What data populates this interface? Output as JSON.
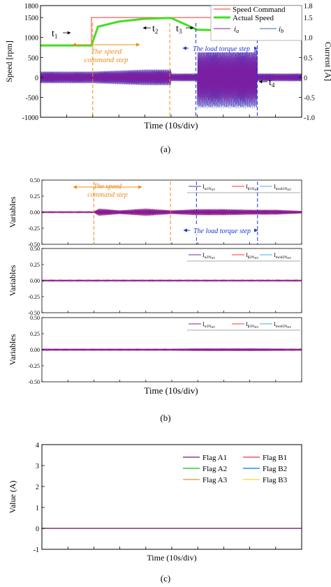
{
  "colors": {
    "speed_command": "#ff5a5a",
    "actual_speed": "#44dd22",
    "current_a": "#7b1fa2",
    "current_b": "#2c66d9",
    "orange_marker": "#f08a1a",
    "blue_marker": "#1a35d6",
    "var_a": "#7b1fa2",
    "var_b": "#ff3030",
    "var_mod": "#45b0e0",
    "flag_a1": "#8a3aa8",
    "flag_b1": "#ff5050",
    "flag_a2": "#33cc33",
    "flag_b2": "#2a8fe0",
    "flag_a3": "#f0a050",
    "flag_b3": "#f5e04a"
  },
  "captions": {
    "a": "(a)",
    "b": "(b)",
    "c": "(c)"
  },
  "chart_data": [
    {
      "id": "a",
      "type": "line",
      "xlabel": "Time (10s/div)",
      "ylabel": "Speed [rpm]",
      "y2label": "Current [A]",
      "ylim": [
        -1000,
        1800
      ],
      "y2lim": [
        -1.0,
        1.8
      ],
      "yticks": [
        "1800",
        "1500",
        "1000",
        "500",
        "0",
        "-500",
        "-1000"
      ],
      "y2ticks": [
        "1.8",
        "1.5",
        "1.0",
        "0.5",
        "0",
        "-0.5",
        "-1.0"
      ],
      "legend": [
        "Speed Command",
        "Actual Speed",
        "i_a",
        "i_b"
      ],
      "legend_labels": {
        "speed_command": "Speed Command",
        "actual_speed": "Actual Speed",
        "ia": "i",
        "ia_sub": "a",
        "ib": "i",
        "ib_sub": "b"
      },
      "legend_position": "top-right",
      "series": [
        {
          "name": "Speed Command",
          "x": [
            0,
            1.95,
            1.95,
            10
          ],
          "y": [
            800,
            800,
            1500,
            1500
          ]
        },
        {
          "name": "Actual Speed",
          "x": [
            0,
            1.95,
            2.2,
            3.0,
            4.0,
            5.0,
            6.0,
            7.0,
            8.0,
            8.5,
            9.0,
            10
          ],
          "y": [
            800,
            800,
            1270,
            1400,
            1470,
            1490,
            1195,
            1180,
            1180,
            1280,
            1240,
            1230
          ]
        },
        {
          "name": "i_a",
          "envelope": {
            "x": [
              0,
              2,
              4,
              5,
              5,
              6,
              6,
              8.3,
              8.3,
              10
            ],
            "amp": [
              0.15,
              0.15,
              0.2,
              0.2,
              0.1,
              0.1,
              0.75,
              0.75,
              0.1,
              0.1
            ]
          }
        },
        {
          "name": "i_b",
          "envelope": {
            "x": [
              0,
              2,
              4,
              5,
              5,
              6,
              6,
              8.3,
              8.3,
              10
            ],
            "amp": [
              0.15,
              0.15,
              0.2,
              0.2,
              0.1,
              0.1,
              0.78,
              0.78,
              0.1,
              0.1
            ]
          }
        }
      ],
      "annotations": {
        "t1": "t",
        "t1_sub": "1",
        "t2": "t",
        "t2_sub": "2",
        "t3": "t",
        "t3_sub": "3",
        "t4": "t",
        "t4_sub": "4",
        "speed_step_line1": "The speed",
        "speed_step_line2": "command step",
        "load_step": "The load torque step"
      },
      "markers_x": {
        "speed_start": 2.0,
        "speed_end": 4.95,
        "load_start": 5.95,
        "load_end": 8.3
      }
    },
    {
      "id": "b",
      "type": "line",
      "xlabel": "Time (10s/div)",
      "ylabel": "Variables",
      "ylim": [
        -0.5,
        0.5
      ],
      "yticks": [
        "0.50",
        "0.25",
        "0.00",
        "-0.25",
        "-0.50"
      ],
      "panels": [
        {
          "legend": [
            {
              "main": "I",
              "sub": "α1N",
              "subsub": "ΔV"
            },
            {
              "main": "I",
              "sub": "β1N",
              "subsub": "ΔV"
            },
            {
              "main": "I",
              "sub": "mod1N",
              "subsub": "ΔV"
            }
          ],
          "envelope": {
            "x": [
              0,
              2.0,
              2.2,
              3.0,
              4.0,
              5.0,
              6.0,
              7.0,
              8.0,
              9.0,
              10
            ],
            "amp": [
              0.01,
              0.01,
              0.06,
              0.03,
              0.06,
              0.03,
              0.05,
              0.05,
              0.04,
              0.04,
              0.02
            ]
          }
        },
        {
          "legend": [
            {
              "main": "I",
              "sub": "α2N",
              "subsub": "ΔV"
            },
            {
              "main": "I",
              "sub": "β2N",
              "subsub": "ΔV"
            },
            {
              "main": "I",
              "sub": "mod2N",
              "subsub": "ΔV"
            }
          ],
          "envelope": {
            "x": [
              0,
              10
            ],
            "amp": [
              0.01,
              0.01
            ]
          }
        },
        {
          "legend": [
            {
              "main": "I",
              "sub": "α3N",
              "subsub": "ΔV"
            },
            {
              "main": "I",
              "sub": "β3N",
              "subsub": "ΔV"
            },
            {
              "main": "I",
              "sub": "mod3N",
              "subsub": "ΔV"
            }
          ],
          "envelope": {
            "x": [
              0,
              5,
              6,
              8.3,
              10
            ],
            "amp": [
              0.015,
              0.015,
              0.02,
              0.02,
              0.015
            ]
          }
        }
      ],
      "annotations": {
        "speed_step_line1": "The speed",
        "speed_step_line2": "command step",
        "load_step": "The load torque step"
      },
      "markers_x": {
        "speed_start": 2.0,
        "speed_end": 4.95,
        "load_start": 5.95,
        "load_end": 8.3
      }
    },
    {
      "id": "c",
      "type": "line",
      "xlabel": "Time (10s/div)",
      "ylabel": "Value (A)",
      "ylim": [
        -1,
        4
      ],
      "yticks": [
        "4",
        "3",
        "2",
        "1",
        "0",
        "-1"
      ],
      "legend": [
        "Flag A1",
        "Flag B1",
        "Flag A2",
        "Flag B2",
        "Flag A3",
        "Flag B3"
      ],
      "legend_position": "top-right",
      "series": [
        {
          "name": "Flag A1",
          "x": [
            0,
            10
          ],
          "y": [
            0,
            0
          ]
        },
        {
          "name": "Flag B1",
          "x": [
            0,
            10
          ],
          "y": [
            0,
            0
          ]
        },
        {
          "name": "Flag A2",
          "x": [
            0,
            10
          ],
          "y": [
            0,
            0
          ]
        },
        {
          "name": "Flag B2",
          "x": [
            0,
            10
          ],
          "y": [
            0,
            0
          ]
        },
        {
          "name": "Flag A3",
          "x": [
            0,
            10
          ],
          "y": [
            0,
            0
          ]
        },
        {
          "name": "Flag B3",
          "x": [
            0,
            10
          ],
          "y": [
            0,
            0
          ]
        }
      ]
    }
  ]
}
